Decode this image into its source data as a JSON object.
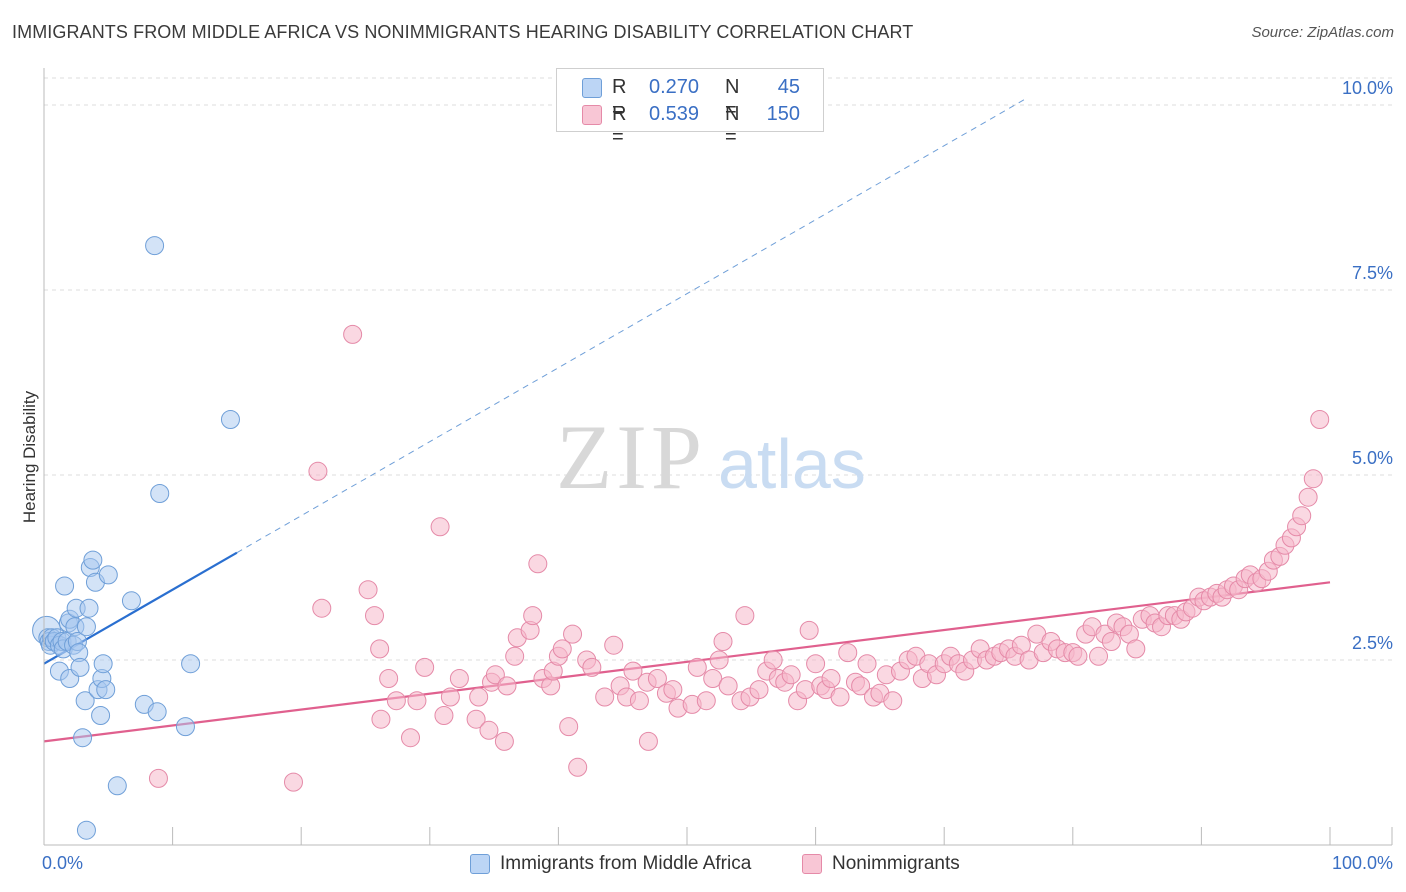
{
  "title": "IMMIGRANTS FROM MIDDLE AFRICA VS NONIMMIGRANTS HEARING DISABILITY CORRELATION CHART",
  "source": "Source: ZipAtlas.com",
  "watermark": {
    "zip": "ZIP",
    "atlas": "atlas"
  },
  "legend_top": {
    "rows": [
      {
        "r_label": "R =",
        "r_value": "0.270",
        "n_label": "N =",
        "n_value": "45"
      },
      {
        "r_label": "R =",
        "r_value": "0.539",
        "n_label": "N =",
        "n_value": "150"
      }
    ]
  },
  "legend_bottom": [
    {
      "label": "Immigrants from Middle Africa"
    },
    {
      "label": "Nonimmigrants"
    }
  ],
  "colors": {
    "blue_fill": "#a8c8f0",
    "blue_stroke": "#6f9fd8",
    "blue_line": "#2a6fd0",
    "pink_fill": "#f5b8cb",
    "pink_stroke": "#e58aa8",
    "pink_line": "#e0608e",
    "tick_label": "#3a6fc4",
    "grid": "#dddddd"
  },
  "chart_data": {
    "type": "scatter",
    "title": "IMMIGRANTS FROM MIDDLE AFRICA VS NONIMMIGRANTS HEARING DISABILITY CORRELATION CHART",
    "xlabel": "",
    "ylabel": "Hearing Disability",
    "xlim": [
      0,
      100
    ],
    "ylim": [
      0,
      10.5
    ],
    "x_tick_labels": [
      {
        "value": 0,
        "label": "0.0%"
      },
      {
        "value": 100,
        "label": "100.0%"
      }
    ],
    "y_ticks": [
      {
        "value": 2.5,
        "label": "2.5%"
      },
      {
        "value": 5.0,
        "label": "5.0%"
      },
      {
        "value": 7.5,
        "label": "7.5%"
      },
      {
        "value": 10.0,
        "label": "10.0%"
      }
    ],
    "grid": true,
    "legend_position": "bottom",
    "series": [
      {
        "name": "Immigrants from Middle Africa",
        "color": "blue",
        "points": [
          [
            0.2,
            2.9
          ],
          [
            0.3,
            2.8
          ],
          [
            0.4,
            2.75
          ],
          [
            0.5,
            2.7
          ],
          [
            0.6,
            2.8
          ],
          [
            0.8,
            2.75
          ],
          [
            1.0,
            2.8
          ],
          [
            1.2,
            2.7
          ],
          [
            1.4,
            2.75
          ],
          [
            1.5,
            2.65
          ],
          [
            1.2,
            2.35
          ],
          [
            1.6,
            3.5
          ],
          [
            1.8,
            2.75
          ],
          [
            1.9,
            3.0
          ],
          [
            2.0,
            3.05
          ],
          [
            2.0,
            2.25
          ],
          [
            2.3,
            2.7
          ],
          [
            2.4,
            2.95
          ],
          [
            2.6,
            2.75
          ],
          [
            2.7,
            2.6
          ],
          [
            2.5,
            3.2
          ],
          [
            2.8,
            2.4
          ],
          [
            3.0,
            1.45
          ],
          [
            3.2,
            1.95
          ],
          [
            3.3,
            2.95
          ],
          [
            3.5,
            3.2
          ],
          [
            3.6,
            3.75
          ],
          [
            3.8,
            3.85
          ],
          [
            4.0,
            3.55
          ],
          [
            4.2,
            2.1
          ],
          [
            4.4,
            1.75
          ],
          [
            4.5,
            2.25
          ],
          [
            4.6,
            2.45
          ],
          [
            4.8,
            2.1
          ],
          [
            5.0,
            3.65
          ],
          [
            5.7,
            0.8
          ],
          [
            3.3,
            0.2
          ],
          [
            6.8,
            3.3
          ],
          [
            7.8,
            1.9
          ],
          [
            8.6,
            8.1
          ],
          [
            8.8,
            1.8
          ],
          [
            9.0,
            4.75
          ],
          [
            11.0,
            1.6
          ],
          [
            11.4,
            2.45
          ],
          [
            14.5,
            5.75
          ]
        ],
        "trend": {
          "x0": 0,
          "y0": 2.45,
          "x1": 15,
          "y1": 3.95,
          "dashed_to_x": 76.5,
          "dashed_to_y": 10.1
        }
      },
      {
        "name": "Nonimmigrants",
        "color": "pink",
        "points": [
          [
            8.9,
            0.9
          ],
          [
            19.4,
            0.85
          ],
          [
            21.3,
            5.05
          ],
          [
            21.6,
            3.2
          ],
          [
            24.0,
            6.9
          ],
          [
            25.2,
            3.45
          ],
          [
            25.7,
            3.1
          ],
          [
            26.1,
            2.65
          ],
          [
            26.2,
            1.7
          ],
          [
            26.8,
            2.25
          ],
          [
            27.4,
            1.95
          ],
          [
            28.5,
            1.45
          ],
          [
            29.6,
            2.4
          ],
          [
            29.0,
            1.95
          ],
          [
            30.8,
            4.3
          ],
          [
            31.1,
            1.75
          ],
          [
            31.6,
            2.0
          ],
          [
            32.3,
            2.25
          ],
          [
            33.6,
            1.7
          ],
          [
            33.8,
            2.0
          ],
          [
            34.6,
            1.55
          ],
          [
            34.8,
            2.2
          ],
          [
            35.1,
            2.3
          ],
          [
            35.8,
            1.4
          ],
          [
            36.0,
            2.15
          ],
          [
            36.6,
            2.55
          ],
          [
            36.8,
            2.8
          ],
          [
            37.8,
            2.9
          ],
          [
            38.0,
            3.1
          ],
          [
            38.4,
            3.8
          ],
          [
            38.8,
            2.25
          ],
          [
            39.4,
            2.15
          ],
          [
            39.6,
            2.35
          ],
          [
            40.0,
            2.55
          ],
          [
            40.3,
            2.65
          ],
          [
            40.8,
            1.6
          ],
          [
            41.1,
            2.85
          ],
          [
            41.5,
            1.05
          ],
          [
            42.2,
            2.5
          ],
          [
            42.6,
            2.4
          ],
          [
            43.6,
            2.0
          ],
          [
            44.3,
            2.7
          ],
          [
            44.8,
            2.15
          ],
          [
            45.3,
            2.0
          ],
          [
            45.8,
            2.35
          ],
          [
            46.3,
            1.95
          ],
          [
            46.9,
            2.2
          ],
          [
            47.0,
            1.4
          ],
          [
            47.7,
            2.25
          ],
          [
            48.4,
            2.05
          ],
          [
            48.9,
            2.1
          ],
          [
            49.3,
            1.85
          ],
          [
            50.4,
            1.9
          ],
          [
            50.8,
            2.4
          ],
          [
            51.5,
            1.95
          ],
          [
            52.0,
            2.25
          ],
          [
            52.5,
            2.5
          ],
          [
            52.8,
            2.75
          ],
          [
            53.2,
            2.15
          ],
          [
            54.2,
            1.95
          ],
          [
            54.5,
            3.1
          ],
          [
            54.9,
            2.0
          ],
          [
            55.6,
            2.1
          ],
          [
            56.2,
            2.35
          ],
          [
            56.7,
            2.5
          ],
          [
            57.1,
            2.25
          ],
          [
            57.6,
            2.2
          ],
          [
            58.1,
            2.3
          ],
          [
            58.6,
            1.95
          ],
          [
            59.2,
            2.1
          ],
          [
            59.5,
            2.9
          ],
          [
            60.0,
            2.45
          ],
          [
            60.4,
            2.15
          ],
          [
            60.8,
            2.1
          ],
          [
            61.2,
            2.25
          ],
          [
            61.9,
            2.0
          ],
          [
            62.5,
            2.6
          ],
          [
            63.1,
            2.2
          ],
          [
            63.5,
            2.15
          ],
          [
            64.0,
            2.45
          ],
          [
            64.5,
            2.0
          ],
          [
            65.0,
            2.05
          ],
          [
            65.5,
            2.3
          ],
          [
            66.0,
            1.95
          ],
          [
            66.6,
            2.35
          ],
          [
            67.2,
            2.5
          ],
          [
            67.8,
            2.55
          ],
          [
            68.3,
            2.25
          ],
          [
            68.8,
            2.45
          ],
          [
            69.4,
            2.3
          ],
          [
            70.0,
            2.45
          ],
          [
            70.5,
            2.55
          ],
          [
            71.1,
            2.45
          ],
          [
            71.6,
            2.35
          ],
          [
            72.2,
            2.5
          ],
          [
            72.8,
            2.65
          ],
          [
            73.3,
            2.5
          ],
          [
            73.9,
            2.55
          ],
          [
            74.4,
            2.6
          ],
          [
            75.0,
            2.65
          ],
          [
            75.5,
            2.55
          ],
          [
            76.0,
            2.7
          ],
          [
            76.6,
            2.5
          ],
          [
            77.2,
            2.85
          ],
          [
            77.7,
            2.6
          ],
          [
            78.3,
            2.75
          ],
          [
            78.8,
            2.65
          ],
          [
            79.4,
            2.6
          ],
          [
            80.0,
            2.6
          ],
          [
            80.4,
            2.55
          ],
          [
            81.0,
            2.85
          ],
          [
            81.5,
            2.95
          ],
          [
            82.0,
            2.55
          ],
          [
            82.5,
            2.85
          ],
          [
            83.0,
            2.75
          ],
          [
            83.4,
            3.0
          ],
          [
            83.9,
            2.95
          ],
          [
            84.4,
            2.85
          ],
          [
            84.9,
            2.65
          ],
          [
            85.4,
            3.05
          ],
          [
            86.0,
            3.1
          ],
          [
            86.4,
            3.0
          ],
          [
            86.9,
            2.95
          ],
          [
            87.4,
            3.1
          ],
          [
            87.9,
            3.1
          ],
          [
            88.4,
            3.05
          ],
          [
            88.8,
            3.15
          ],
          [
            89.3,
            3.2
          ],
          [
            89.8,
            3.35
          ],
          [
            90.2,
            3.3
          ],
          [
            90.7,
            3.35
          ],
          [
            91.2,
            3.4
          ],
          [
            91.6,
            3.35
          ],
          [
            92.0,
            3.45
          ],
          [
            92.5,
            3.5
          ],
          [
            92.9,
            3.45
          ],
          [
            93.4,
            3.6
          ],
          [
            93.8,
            3.65
          ],
          [
            94.3,
            3.55
          ],
          [
            94.7,
            3.6
          ],
          [
            95.2,
            3.7
          ],
          [
            95.6,
            3.85
          ],
          [
            96.1,
            3.9
          ],
          [
            96.5,
            4.05
          ],
          [
            97.0,
            4.15
          ],
          [
            97.4,
            4.3
          ],
          [
            97.8,
            4.45
          ],
          [
            98.3,
            4.7
          ],
          [
            98.7,
            4.95
          ],
          [
            99.2,
            5.75
          ]
        ],
        "trend": {
          "x0": 0,
          "y0": 1.4,
          "x1": 100,
          "y1": 3.55
        }
      }
    ]
  }
}
